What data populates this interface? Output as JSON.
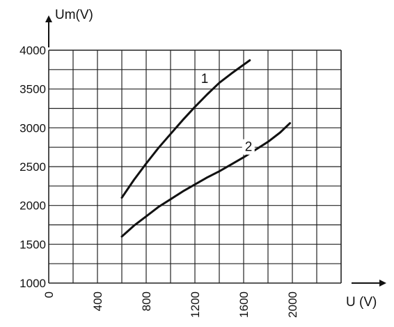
{
  "chart_data": {
    "type": "line",
    "title": "",
    "xlabel": "U (V)",
    "ylabel": "Um(V)",
    "xlim": [
      0,
      2400
    ],
    "ylim": [
      1000,
      4000
    ],
    "x_ticks": [
      "0",
      "400",
      "800",
      "1200",
      "1600",
      "2000"
    ],
    "y_ticks": [
      "1000",
      "1500",
      "2000",
      "2500",
      "3000",
      "3500",
      "4000"
    ],
    "grid": true,
    "legend": "none",
    "series": [
      {
        "name": "1",
        "x": [
          600,
          700,
          800,
          900,
          1000,
          1100,
          1200,
          1300,
          1400,
          1500,
          1650
        ],
        "y": [
          2100,
          2330,
          2540,
          2740,
          2920,
          3100,
          3270,
          3430,
          3580,
          3700,
          3870
        ]
      },
      {
        "name": "2",
        "x": [
          600,
          700,
          800,
          900,
          1000,
          1100,
          1200,
          1300,
          1400,
          1500,
          1600,
          1700,
          1800,
          1900,
          1980
        ],
        "y": [
          1600,
          1740,
          1860,
          1980,
          2080,
          2180,
          2270,
          2360,
          2440,
          2530,
          2620,
          2720,
          2820,
          2940,
          3060
        ]
      }
    ]
  }
}
